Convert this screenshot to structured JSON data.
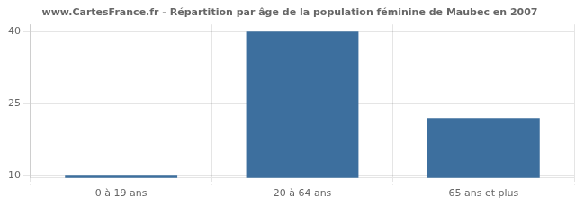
{
  "chart_data": {
    "type": "bar",
    "title": "www.CartesFrance.fr - Répartition par âge de la population féminine de Maubec en 2007",
    "categories": [
      "0 à 19 ans",
      "20 à 64 ans",
      "65 ans et plus"
    ],
    "values": [
      10,
      40,
      22
    ],
    "color": "#3d6f9e",
    "ylim": [
      9.5,
      41.5
    ],
    "yticks": [
      10,
      25,
      40
    ],
    "grid": true
  }
}
